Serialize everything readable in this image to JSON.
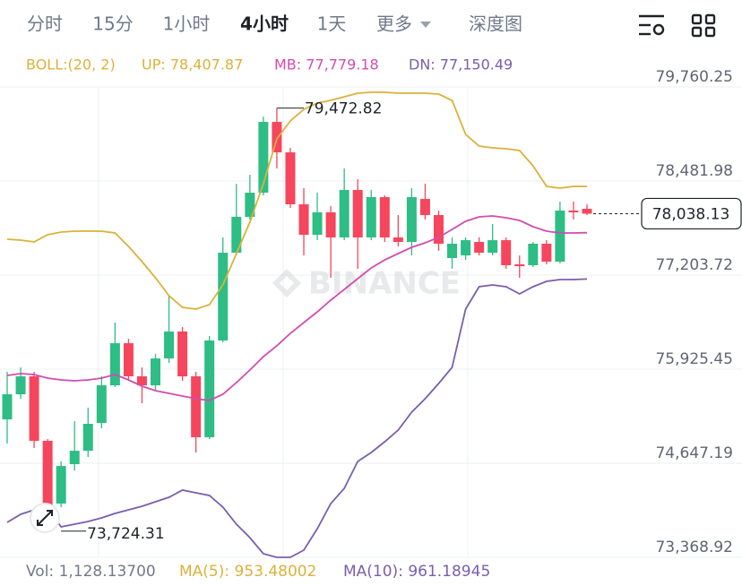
{
  "toolbar": {
    "tabs": [
      "分时",
      "15分",
      "1小时",
      "4小时",
      "1天",
      "更多",
      "深度图"
    ],
    "active": 3
  },
  "chart_data": {
    "type": "candlestick",
    "indicator": {
      "label": "BOLL:(20, 2)",
      "up": "UP: 78,407.87",
      "mb": "MB: 77,779.18",
      "dn": "DN: 77,150.49"
    },
    "open": [
      75243,
      75584,
      75828,
      74952,
      74099,
      74635,
      74817,
      75195,
      75706,
      76278,
      75828,
      75706,
      76071,
      76437,
      75828,
      75000,
      76315,
      77508,
      77995,
      78323,
      79285,
      78871,
      78165,
      77751,
      78056,
      77715,
      78360,
      77715,
      78263,
      77715,
      77654,
      78238,
      78019,
      77435,
      77471,
      77654,
      77508,
      77678,
      77350,
      77338,
      77630,
      77386,
      78080,
      78104
    ],
    "high": [
      75889,
      75949,
      75889,
      74976,
      74671,
      75219,
      75402,
      75828,
      76558,
      76339,
      75949,
      76132,
      76923,
      76497,
      75889,
      76376,
      77715,
      78445,
      78567,
      79358,
      79472.82,
      78932,
      78384,
      78323,
      78141,
      78652,
      78506,
      78360,
      78287,
      78019,
      78384,
      78445,
      78080,
      77715,
      77715,
      77715,
      77897,
      77715,
      77471,
      77654,
      77678,
      78202,
      78202,
      78165
    ],
    "low": [
      74915,
      75523,
      74854,
      73724.31,
      74050,
      74549,
      74732,
      75122,
      75682,
      75767,
      75463,
      75645,
      76010,
      75767,
      74793,
      74976,
      76290,
      77471,
      77958,
      78287,
      78652,
      78117,
      77471,
      77678,
      77167,
      77678,
      77289,
      77678,
      77654,
      77593,
      77471,
      77958,
      77532,
      77289,
      77410,
      77471,
      77471,
      77289,
      77167,
      77313,
      77350,
      77362,
      77958,
      78019
    ],
    "close": [
      75584,
      75828,
      74952,
      73904,
      74610,
      74817,
      75183,
      75706,
      76278,
      75828,
      75706,
      76071,
      76437,
      75828,
      75000,
      76315,
      77508,
      77995,
      78323,
      79285,
      78871,
      78165,
      77751,
      78056,
      77715,
      78360,
      77715,
      78263,
      77715,
      77654,
      78263,
      78019,
      77630,
      77630,
      77678,
      77508,
      77678,
      77338,
      77325,
      77630,
      77386,
      78080,
      78056,
      78038.13
    ],
    "colors": {
      "up": "#2ebd85",
      "down": "#f6465d"
    },
    "lines": [
      {
        "name": "UP",
        "color": "#dcb13a",
        "values": [
          77691,
          77678,
          77654,
          77751,
          77788,
          77800,
          77800,
          77800,
          77776,
          77593,
          77386,
          77167,
          76924,
          76765,
          76741,
          76802,
          77070,
          77496,
          77922,
          78445,
          79054,
          79298,
          79456,
          79541,
          79578,
          79626,
          79675,
          79687,
          79687,
          79675,
          79675,
          79675,
          79663,
          79578,
          79115,
          78957,
          78932,
          78920,
          78896,
          78689,
          78409,
          78385,
          78409,
          78407.87
        ]
      },
      {
        "name": "MB",
        "color": "#d14db0",
        "values": [
          75840,
          75864,
          75852,
          75804,
          75779,
          75767,
          75779,
          75804,
          75852,
          75779,
          75694,
          75633,
          75597,
          75560,
          75524,
          75499,
          75584,
          75743,
          75913,
          76096,
          76242,
          76412,
          76558,
          76704,
          76863,
          77009,
          77155,
          77301,
          77410,
          77496,
          77581,
          77642,
          77715,
          77824,
          77934,
          77995,
          78007,
          77983,
          77946,
          77861,
          77800,
          77776,
          77776,
          77779.18
        ]
      },
      {
        "name": "DN",
        "color": "#7a5eae",
        "values": [
          73844,
          73953,
          74014,
          74026,
          73783,
          73819,
          73856,
          73904,
          73965,
          74014,
          74063,
          74124,
          74184,
          74282,
          74245,
          74209,
          74051,
          73819,
          73637,
          73418,
          73369,
          73369,
          73466,
          73758,
          74099,
          74306,
          74671,
          74793,
          74939,
          75098,
          75341,
          75524,
          75731,
          75950,
          76741,
          77045,
          77070,
          77045,
          76948,
          77045,
          77118,
          77143,
          77143,
          77150.49
        ]
      }
    ],
    "ylim": [
      73368.92,
      79760.25
    ],
    "yticks": [
      {
        "value": 79760.25,
        "label": "79,760.25"
      },
      {
        "value": 78481.98,
        "label": "78,481.98"
      },
      {
        "value": 77203.72,
        "label": "77,203.72"
      },
      {
        "value": 75925.45,
        "label": "75,925.45"
      },
      {
        "value": 74647.19,
        "label": "74,647.19"
      },
      {
        "value": 73368.92,
        "label": "73,368.92"
      }
    ],
    "grid": true,
    "last_price": {
      "value": 78038.13,
      "label": "78,038.13"
    },
    "high_label": "79,472.82",
    "low_label": "73,724.31",
    "watermark": "BINANCE",
    "volume": {
      "vol": "Vol: 1,128.13700",
      "ma5": "MA(5): 953.48002",
      "ma10": "MA(10): 961.18945"
    }
  }
}
